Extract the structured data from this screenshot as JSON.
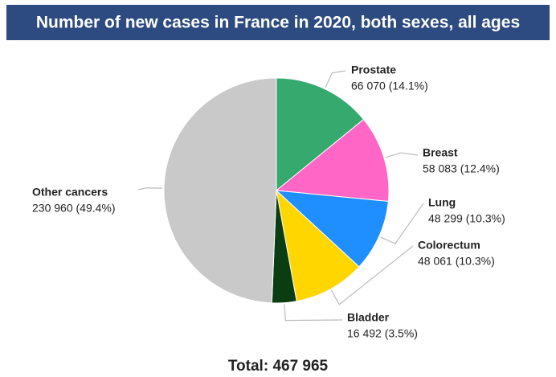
{
  "chart_data": {
    "type": "pie",
    "title": "Number of new cases in France in 2020, both sexes, all ages",
    "categories": [
      "Prostate",
      "Breast",
      "Lung",
      "Colorectum",
      "Bladder",
      "Other cancers"
    ],
    "values": [
      66070,
      58083,
      48299,
      48061,
      16492,
      230960
    ],
    "value_labels": [
      "66 070 (14.1%)",
      "58 083 (12.4%)",
      "48 299 (10.3%)",
      "48 061 (10.3%)",
      "16 492 (3.5%)",
      "230 960 (49.4%)"
    ],
    "colors": [
      "#36a96f",
      "#ff66c6",
      "#1f8fff",
      "#ffd600",
      "#0a3d12",
      "#c9c9c9"
    ],
    "total": "Total: 467 965"
  }
}
